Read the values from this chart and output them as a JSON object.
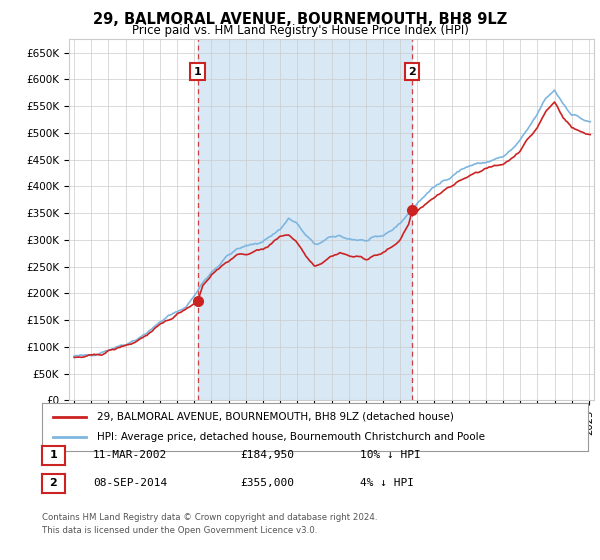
{
  "title": "29, BALMORAL AVENUE, BOURNEMOUTH, BH8 9LZ",
  "subtitle": "Price paid vs. HM Land Registry's House Price Index (HPI)",
  "ylim": [
    0,
    675000
  ],
  "xlim_start": 1994.7,
  "xlim_end": 2025.3,
  "hpi_color": "#7EB6E0",
  "price_color": "#CC2222",
  "shade_color": "#D8E8F5",
  "marker1_x": 2002.19,
  "marker1_y": 184950,
  "marker1_label": "1",
  "marker1_date": "11-MAR-2002",
  "marker1_price": "£184,950",
  "marker1_pct": "10% ↓ HPI",
  "marker2_x": 2014.69,
  "marker2_y": 355000,
  "marker2_label": "2",
  "marker2_date": "08-SEP-2014",
  "marker2_price": "£355,000",
  "marker2_pct": "4% ↓ HPI",
  "legend_line1": "29, BALMORAL AVENUE, BOURNEMOUTH, BH8 9LZ (detached house)",
  "legend_line2": "HPI: Average price, detached house, Bournemouth Christchurch and Poole",
  "footer1": "Contains HM Land Registry data © Crown copyright and database right 2024.",
  "footer2": "This data is licensed under the Open Government Licence v3.0.",
  "background_color": "#FFFFFF",
  "grid_color": "#CCCCCC"
}
